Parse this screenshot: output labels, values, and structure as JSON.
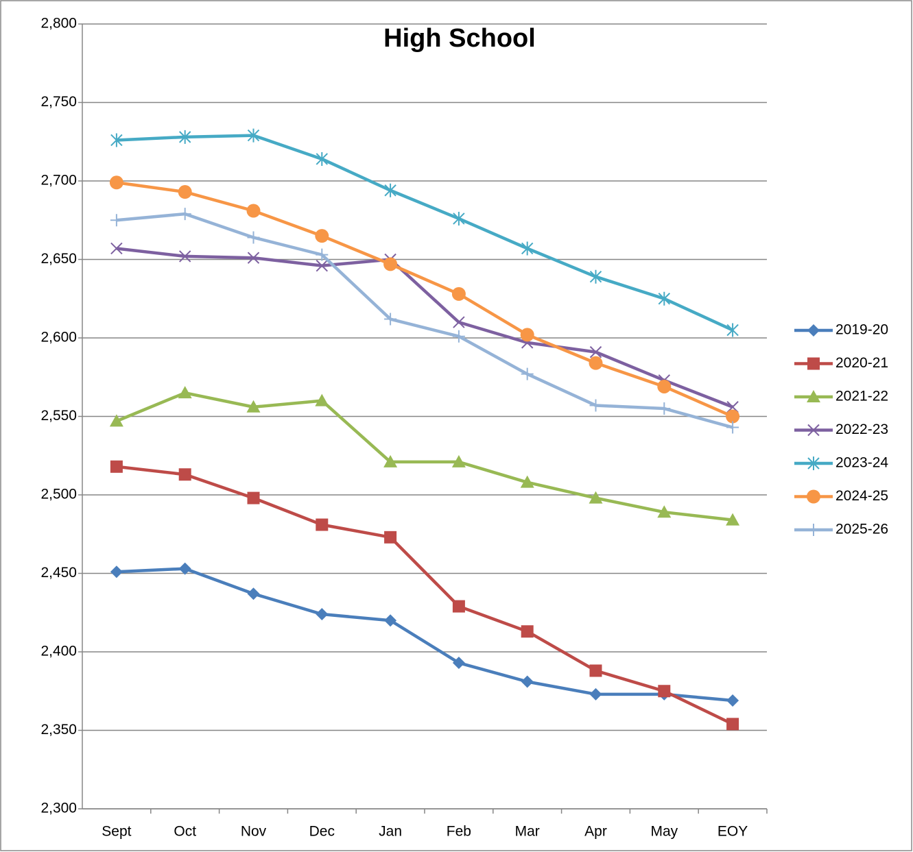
{
  "chart_data": {
    "type": "line",
    "title": "High School",
    "categories": [
      "Sept",
      "Oct",
      "Nov",
      "Dec",
      "Jan",
      "Feb",
      "Mar",
      "Apr",
      "May",
      "EOY"
    ],
    "ylim": [
      2300,
      2800
    ],
    "yticks": [
      {
        "value": 2300,
        "label": "2,300"
      },
      {
        "value": 2350,
        "label": "2,350"
      },
      {
        "value": 2400,
        "label": "2,400"
      },
      {
        "value": 2450,
        "label": "2,450"
      },
      {
        "value": 2500,
        "label": "2,500"
      },
      {
        "value": 2550,
        "label": "2,550"
      },
      {
        "value": 2600,
        "label": "2,600"
      },
      {
        "value": 2650,
        "label": "2,650"
      },
      {
        "value": 2700,
        "label": "2,700"
      },
      {
        "value": 2750,
        "label": "2,750"
      },
      {
        "value": 2800,
        "label": "2,800"
      }
    ],
    "grid": true,
    "legend": "right",
    "series": [
      {
        "name": "2019-20",
        "color": "#4a7ebb",
        "marker": "diamond",
        "values": [
          2451,
          2453,
          2437,
          2424,
          2420,
          2393,
          2381,
          2373,
          2373,
          2369
        ]
      },
      {
        "name": "2020-21",
        "color": "#be4b48",
        "marker": "square",
        "values": [
          2518,
          2513,
          2498,
          2481,
          2473,
          2429,
          2413,
          2388,
          2375,
          2354
        ]
      },
      {
        "name": "2021-22",
        "color": "#98b954",
        "marker": "triangle",
        "values": [
          2547,
          2565,
          2556,
          2560,
          2521,
          2521,
          2508,
          2498,
          2489,
          2484
        ]
      },
      {
        "name": "2022-23",
        "color": "#7d60a0",
        "marker": "x",
        "values": [
          2657,
          2652,
          2651,
          2646,
          2650,
          2610,
          2597,
          2591,
          2573,
          2556
        ]
      },
      {
        "name": "2023-24",
        "color": "#46aac5",
        "marker": "asterisk",
        "values": [
          2726,
          2728,
          2729,
          2714,
          2694,
          2676,
          2657,
          2639,
          2625,
          2605
        ]
      },
      {
        "name": "2024-25",
        "color": "#f79646",
        "marker": "circle",
        "values": [
          2699,
          2693,
          2681,
          2665,
          2647,
          2628,
          2602,
          2584,
          2569,
          2550
        ]
      },
      {
        "name": "2025-26",
        "color": "#95b3d7",
        "marker": "plus",
        "values": [
          2675,
          2679,
          2664,
          2653,
          2612,
          2601,
          2577,
          2557,
          2555,
          2543
        ]
      }
    ]
  }
}
